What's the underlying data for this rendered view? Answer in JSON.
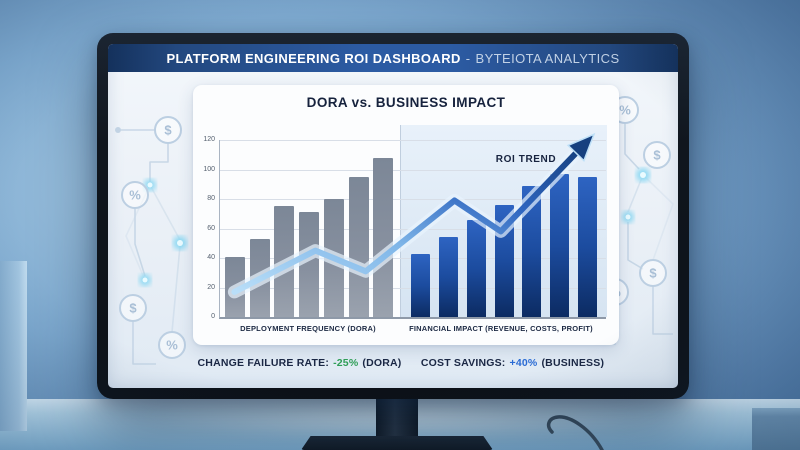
{
  "header": {
    "title_main": "PLATFORM ENGINEERING ROI DASHBOARD",
    "separator": "-",
    "brand": "BYTEIOTA ANALYTICS"
  },
  "chart_data": {
    "type": "bar",
    "title": "DORA vs. BUSINESS IMPACT",
    "y_axis": {
      "min": 0,
      "max": 120,
      "ticks": [
        0,
        20,
        40,
        60,
        80,
        100,
        120
      ]
    },
    "grid": true,
    "legend_position": "none",
    "groups": [
      {
        "label": "DEPLOYMENT FREQUENCY (DORA)",
        "series_color": "#7d8898",
        "values": [
          41,
          53,
          75,
          71,
          80,
          95,
          108
        ]
      },
      {
        "label": "FINANCIAL IMPACT (REVENUE, COSTS, PROFIT)",
        "series_color": "#1d4fa6",
        "values": [
          43,
          54,
          66,
          76,
          89,
          97,
          95
        ]
      }
    ],
    "trend": {
      "label": "ROI TREND",
      "points": [
        {
          "x": 0.04,
          "v": 17
        },
        {
          "x": 0.25,
          "v": 45
        },
        {
          "x": 0.38,
          "v": 31
        },
        {
          "x": 0.61,
          "v": 79
        },
        {
          "x": 0.73,
          "v": 58
        },
        {
          "x": 0.95,
          "v": 118
        }
      ]
    }
  },
  "stats": [
    {
      "label": "CHANGE FAILURE RATE:",
      "value": "-25%",
      "suffix": "(DORA)",
      "value_color": "#2f9e57"
    },
    {
      "label": "COST SAVINGS:",
      "value": "+40%",
      "suffix": "(BUSINESS)",
      "value_color": "#2a6bd4"
    }
  ],
  "decorations": {
    "left_symbols": [
      "$",
      "%",
      "$",
      "%"
    ],
    "right_symbols": [
      "%",
      "$",
      "$",
      "%"
    ]
  },
  "colors": {
    "header_band": "#2c5ba3",
    "card_bg": "#fcfdfe",
    "bar_gray": "#7d8898",
    "bar_blue": "#1d4fa6",
    "trend_light": "#a9d5f4",
    "trend_dark": "#16407f",
    "panel_bg": "#dce8f4",
    "stat_green": "#2f9e57",
    "stat_blue": "#2a6bd4"
  }
}
